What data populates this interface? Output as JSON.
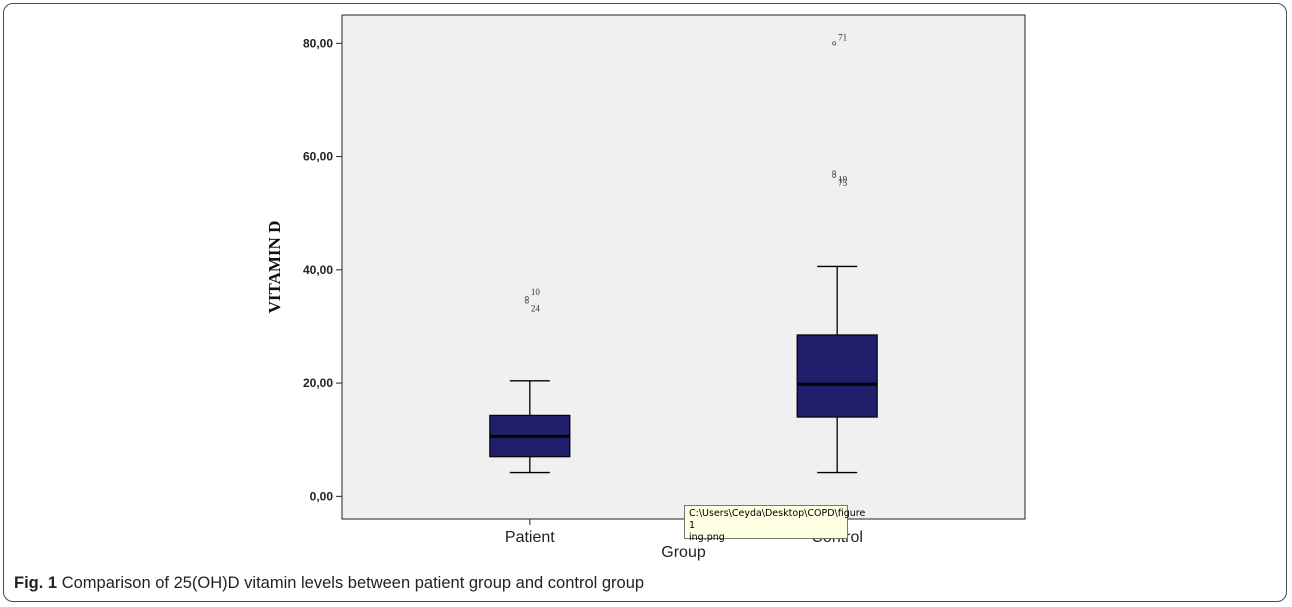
{
  "chart_data": {
    "type": "boxplot",
    "xlabel": "Group",
    "ylabel": "VITAMIN D",
    "ylim": [
      -4,
      85
    ],
    "yticks": [
      0,
      20,
      40,
      60,
      80
    ],
    "ytick_labels": [
      "0,00",
      "20,00",
      "40,00",
      "60,00",
      "80,00"
    ],
    "grid": false,
    "background_color": "#f0f0f0",
    "box_color": "#1f1f6b",
    "categories": [
      "Patient",
      "Control"
    ],
    "boxes": [
      {
        "category": "Patient",
        "min": 4.2,
        "q1": 7.0,
        "median": 10.6,
        "q3": 14.3,
        "max": 20.4,
        "outliers": [
          {
            "value": 35.0,
            "label": "10"
          },
          {
            "value": 34.4,
            "label": "24"
          }
        ]
      },
      {
        "category": "Control",
        "min": 4.2,
        "q1": 14.0,
        "median": 19.8,
        "q3": 28.5,
        "max": 40.6,
        "outliers": [
          {
            "value": 80.0,
            "label": "71"
          },
          {
            "value": 57.2,
            "label": "19"
          },
          {
            "value": 56.6,
            "label": "75"
          }
        ]
      }
    ]
  },
  "tooltip": {
    "text": "C:\\Users\\Ceyda\\Desktop\\COPD\\figure 1\ning.png"
  },
  "caption": {
    "label": "Fig. 1",
    "text": "Comparison of 25(OH)D vitamin levels between patient group and control group"
  }
}
